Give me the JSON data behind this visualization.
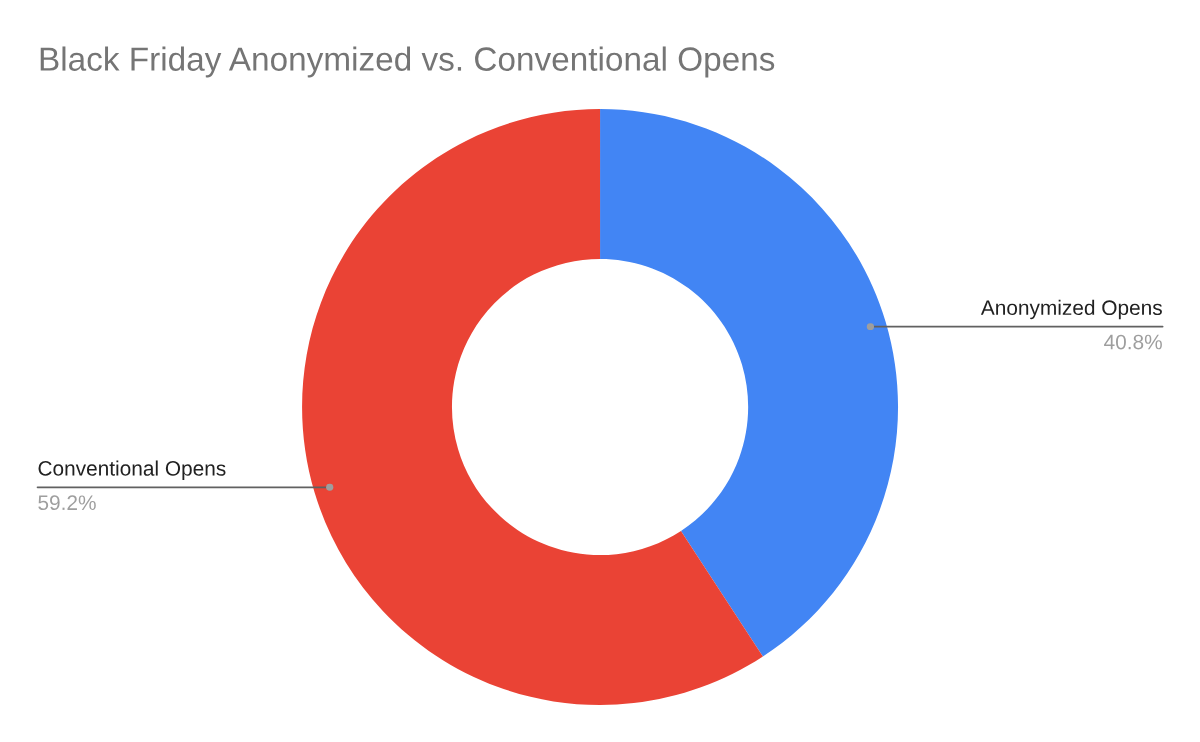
{
  "chart_data": {
    "type": "donut",
    "title": "Black Friday Anonymized vs. Conventional Opens",
    "categories": [
      "Anonymized Opens",
      "Conventional Opens"
    ],
    "values": [
      40.8,
      59.2
    ],
    "colors": [
      "#4285f4",
      "#ea4335"
    ],
    "value_labels": [
      "40.8%",
      "59.2%"
    ]
  }
}
